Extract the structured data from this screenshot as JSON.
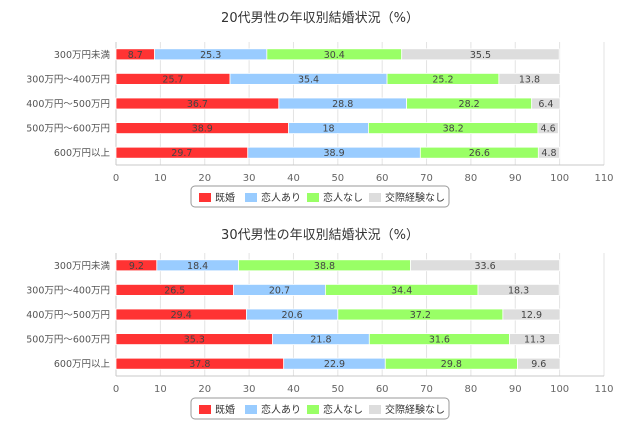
{
  "chart_data": [
    {
      "type": "bar",
      "orientation": "horizontal",
      "stacked": true,
      "title": "20代男性の年収別結婚状況（%）",
      "categories": [
        "300万円未満",
        "300万円～400万円",
        "400万円～500万円",
        "500万円～600万円",
        "600万円以上"
      ],
      "series": [
        {
          "name": "既婚",
          "color": "#ff3333",
          "values": [
            8.7,
            25.7,
            36.7,
            38.9,
            29.7
          ]
        },
        {
          "name": "恋人あり",
          "color": "#99ccff",
          "values": [
            25.3,
            35.4,
            28.8,
            18,
            38.9
          ]
        },
        {
          "name": "恋人なし",
          "color": "#99ff66",
          "values": [
            30.4,
            25.2,
            28.2,
            38.2,
            26.6
          ]
        },
        {
          "name": "交際経験なし",
          "color": "#dddddd",
          "values": [
            35.5,
            13.8,
            6.4,
            4.6,
            4.8
          ]
        }
      ],
      "xticks": [
        "0",
        "10",
        "20",
        "30",
        "40",
        "50",
        "60",
        "70",
        "80",
        "90",
        "100",
        "110"
      ],
      "xlim": [
        0,
        110
      ],
      "grid": true,
      "legend": "bottom"
    },
    {
      "type": "bar",
      "orientation": "horizontal",
      "stacked": true,
      "title": "30代男性の年収別結婚状況（%）",
      "categories": [
        "300万円未満",
        "300万円～400万円",
        "400万円～500万円",
        "500万円～600万円",
        "600万円以上"
      ],
      "series": [
        {
          "name": "既婚",
          "color": "#ff3333",
          "values": [
            9.2,
            26.5,
            29.4,
            35.3,
            37.8
          ]
        },
        {
          "name": "恋人あり",
          "color": "#99ccff",
          "values": [
            18.4,
            20.7,
            20.6,
            21.8,
            22.9
          ]
        },
        {
          "name": "恋人なし",
          "color": "#99ff66",
          "values": [
            38.8,
            34.4,
            37.2,
            31.6,
            29.8
          ]
        },
        {
          "name": "交際経験なし",
          "color": "#dddddd",
          "values": [
            33.6,
            18.3,
            12.9,
            11.3,
            9.6
          ]
        }
      ],
      "xticks": [
        "0",
        "10",
        "20",
        "30",
        "40",
        "50",
        "60",
        "70",
        "80",
        "90",
        "100",
        "110"
      ],
      "xlim": [
        0,
        110
      ],
      "grid": true,
      "legend": "bottom"
    }
  ]
}
